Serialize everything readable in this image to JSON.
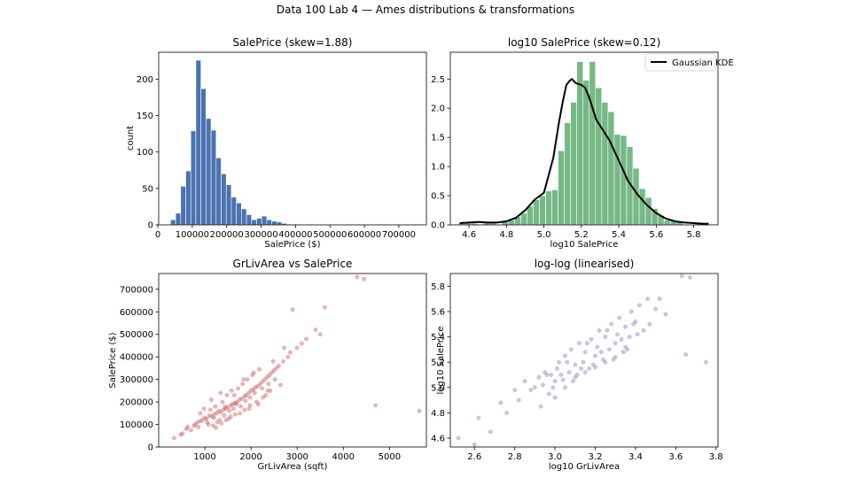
{
  "figure": {
    "suptitle": "Data 100 Lab 4 — Ames distributions & transformations"
  },
  "chart_data": [
    {
      "type": "bar",
      "subtype": "histogram",
      "title": "SalePrice (skew=1.88)",
      "xlabel": "SalePrice ($)",
      "ylabel": "count",
      "color": "#4c72b0",
      "xlim": [
        2500,
        780000
      ],
      "ylim": [
        0,
        237
      ],
      "xticks": [
        0,
        100000,
        200000,
        300000,
        400000,
        500000,
        600000,
        700000
      ],
      "xtick_labels": [
        "0",
        "100000",
        "200000",
        "300000",
        "400000",
        "500000",
        "600000",
        "700000"
      ],
      "yticks": [
        0,
        50,
        100,
        150,
        200
      ],
      "ytick_labels": [
        "0",
        "50",
        "100",
        "150",
        "200"
      ],
      "bin_start": 37000,
      "bin_width": 14700,
      "values": [
        7,
        16,
        53,
        74,
        129,
        226,
        187,
        146,
        130,
        92,
        70,
        55,
        38,
        30,
        22,
        14,
        7,
        9,
        12,
        7,
        5,
        4,
        2,
        1,
        1,
        0,
        0,
        1,
        0,
        0,
        0,
        0,
        0,
        0,
        0,
        0,
        0,
        0,
        0,
        0,
        0,
        0,
        0,
        0,
        0,
        0,
        0,
        0,
        1,
        1
      ]
    },
    {
      "type": "bar",
      "subtype": "histogram",
      "title": "log10 SalePrice (skew=0.12)",
      "xlabel": "log10 SalePrice",
      "ylabel": "",
      "color": "#55a868",
      "kde_color": "#000000",
      "xlim": [
        4.5,
        5.93
      ],
      "ylim": [
        0,
        2.96
      ],
      "xticks": [
        4.6,
        4.8,
        5.0,
        5.2,
        5.4,
        5.6,
        5.8
      ],
      "xtick_labels": [
        "4.6",
        "4.8",
        "5.0",
        "5.2",
        "5.4",
        "5.6",
        "5.8"
      ],
      "yticks": [
        0,
        0.5,
        1.0,
        1.5,
        2.0,
        2.5
      ],
      "ytick_labels": [
        "0.0",
        "0.5",
        "1.0",
        "1.5",
        "2.0",
        "2.5"
      ],
      "legend": {
        "entries": [
          "Gaussian KDE"
        ],
        "placement": "top-right"
      },
      "bin_start": 4.543,
      "bin_width": 0.0333,
      "values": [
        0.03,
        0.03,
        0.03,
        0.0,
        0.03,
        0.03,
        0.0,
        0.05,
        0.08,
        0.14,
        0.2,
        0.32,
        0.43,
        0.5,
        0.58,
        0.6,
        1.27,
        1.75,
        2.1,
        2.8,
        2.48,
        2.8,
        2.35,
        2.1,
        1.94,
        1.55,
        1.53,
        1.34,
        0.97,
        0.62,
        0.47,
        0.28,
        0.16,
        0.08,
        0.08,
        0.05,
        0.0,
        0.0,
        0.03,
        0.03
      ],
      "kde": {
        "x": [
          4.55,
          4.6,
          4.65,
          4.7,
          4.75,
          4.8,
          4.85,
          4.9,
          4.95,
          5.0,
          5.05,
          5.08,
          5.1,
          5.12,
          5.14,
          5.15,
          5.17,
          5.2,
          5.22,
          5.24,
          5.26,
          5.28,
          5.3,
          5.35,
          5.4,
          5.45,
          5.5,
          5.55,
          5.6,
          5.65,
          5.7,
          5.75,
          5.8,
          5.85,
          5.88
        ],
        "y": [
          0.03,
          0.04,
          0.05,
          0.04,
          0.04,
          0.06,
          0.12,
          0.25,
          0.43,
          0.55,
          1.15,
          1.75,
          2.1,
          2.4,
          2.48,
          2.5,
          2.43,
          2.4,
          2.35,
          2.2,
          2.0,
          1.8,
          1.7,
          1.45,
          1.1,
          0.75,
          0.52,
          0.34,
          0.2,
          0.11,
          0.06,
          0.04,
          0.03,
          0.02,
          0.02
        ]
      }
    },
    {
      "type": "scatter",
      "title": "GrLivArea vs SalePrice",
      "xlabel": "GrLivArea (sqft)",
      "ylabel": "SalePrice ($)",
      "color": "#c44e52",
      "xlim": [
        0,
        5800
      ],
      "ylim": [
        0,
        770000
      ],
      "xticks": [
        1000,
        2000,
        3000,
        4000,
        5000
      ],
      "xtick_labels": [
        "1000",
        "2000",
        "3000",
        "4000",
        "5000"
      ],
      "yticks": [
        0,
        100000,
        200000,
        300000,
        400000,
        500000,
        600000,
        700000
      ],
      "ytick_labels": [
        "0",
        "100000",
        "200000",
        "300000",
        "400000",
        "500000",
        "600000",
        "700000"
      ],
      "x": [
        334,
        480,
        520,
        600,
        630,
        700,
        760,
        800,
        840,
        860,
        900,
        950,
        1000,
        1040,
        1100,
        1150,
        1200,
        1260,
        1300,
        1350,
        1400,
        1450,
        1500,
        1560,
        1600,
        1650,
        1700,
        1750,
        1800,
        1860,
        1900,
        1950,
        2000,
        2050,
        2100,
        2150,
        2200,
        2250,
        2300,
        2350,
        2400,
        2450,
        2500,
        2550,
        2600,
        2700,
        2800,
        2850,
        3000,
        3100,
        3200,
        3400,
        3500,
        3600,
        4300,
        4450,
        4700,
        5650,
        900,
        1050,
        1120,
        1180,
        1230,
        1320,
        1380,
        1420,
        1480,
        1530,
        1580,
        1620,
        1680,
        1720,
        1780,
        1820,
        1880,
        1920,
        1980,
        2030,
        2080,
        2120,
        2180,
        2240,
        2320,
        2380,
        2420,
        2480,
        2520,
        2640,
        2720,
        2900,
        980,
        1080,
        1140,
        1200,
        1270,
        1340,
        1440,
        1520,
        1640,
        1760,
        1840,
        1960,
        2060,
        2160,
        2260,
        2360,
        1240,
        1360,
        1460,
        1560,
        1660,
        1860,
        1980
      ],
      "y": [
        40000,
        55000,
        60000,
        80000,
        90000,
        75000,
        95000,
        100000,
        110000,
        88000,
        115000,
        120000,
        130000,
        125000,
        140000,
        135000,
        145000,
        150000,
        160000,
        155000,
        165000,
        170000,
        175000,
        185000,
        190000,
        195000,
        200000,
        210000,
        215000,
        225000,
        230000,
        240000,
        250000,
        255000,
        265000,
        270000,
        280000,
        290000,
        300000,
        310000,
        320000,
        330000,
        340000,
        350000,
        360000,
        380000,
        400000,
        420000,
        440000,
        460000,
        480000,
        520000,
        500000,
        620000,
        755000,
        745000,
        185000,
        160000,
        150000,
        110000,
        165000,
        95000,
        180000,
        120000,
        200000,
        140000,
        230000,
        160000,
        250000,
        170000,
        190000,
        260000,
        180000,
        280000,
        205000,
        300000,
        220000,
        320000,
        240000,
        200000,
        345000,
        260000,
        230000,
        280000,
        250000,
        380000,
        300000,
        275000,
        440000,
        610000,
        170000,
        100000,
        210000,
        130000,
        110000,
        240000,
        180000,
        125000,
        230000,
        150000,
        300000,
        170000,
        330000,
        190000,
        220000,
        250000,
        85000,
        105000,
        120000,
        135000,
        145000,
        165000,
        185000
      ]
    },
    {
      "type": "scatter",
      "title": "log-log (linearised)",
      "xlabel": "log10 GrLivArea",
      "ylabel": "log10 SalePrice",
      "color": "#8172b2",
      "xlim": [
        2.48,
        3.81
      ],
      "ylim": [
        4.53,
        5.9
      ],
      "xticks": [
        2.6,
        2.8,
        3.0,
        3.2,
        3.4,
        3.6,
        3.8
      ],
      "xtick_labels": [
        "2.6",
        "2.8",
        "3.0",
        "3.2",
        "3.4",
        "3.6",
        "3.8"
      ],
      "yticks": [
        4.6,
        4.8,
        5.0,
        5.2,
        5.4,
        5.6,
        5.8
      ],
      "ytick_labels": [
        "4.6",
        "4.8",
        "5.0",
        "5.2",
        "5.4",
        "5.6",
        "5.8"
      ],
      "x": [
        2.52,
        2.6,
        2.62,
        2.68,
        2.73,
        2.76,
        2.8,
        2.82,
        2.85,
        2.88,
        2.9,
        2.92,
        2.94,
        2.95,
        2.97,
        2.98,
        3.0,
        3.01,
        3.02,
        3.04,
        3.05,
        3.07,
        3.08,
        3.1,
        3.11,
        3.12,
        3.14,
        3.15,
        3.17,
        3.18,
        3.2,
        3.21,
        3.22,
        3.24,
        3.25,
        3.27,
        3.28,
        3.3,
        3.31,
        3.32,
        3.34,
        3.35,
        3.37,
        3.38,
        3.4,
        3.42,
        3.44,
        3.46,
        3.5,
        3.55,
        3.63,
        3.65,
        3.67,
        3.75,
        2.96,
        2.99,
        3.03,
        3.06,
        3.09,
        3.13,
        3.16,
        3.19,
        3.23,
        3.26,
        3.29,
        3.33,
        3.36,
        3.39,
        2.93,
        3.0,
        3.05,
        3.1,
        3.15,
        3.2,
        3.25,
        3.3,
        3.35,
        3.41,
        3.47,
        3.52
      ],
      "y": [
        4.6,
        4.55,
        4.76,
        4.65,
        4.88,
        4.8,
        4.98,
        4.9,
        5.05,
        4.98,
        5.0,
        5.08,
        5.02,
        5.12,
        4.95,
        5.1,
        5.05,
        5.15,
        5.2,
        5.06,
        5.25,
        5.12,
        5.3,
        5.18,
        5.1,
        5.35,
        5.2,
        5.28,
        5.15,
        5.38,
        5.25,
        5.32,
        5.45,
        5.22,
        5.4,
        5.3,
        5.5,
        5.35,
        5.42,
        5.55,
        5.28,
        5.48,
        5.4,
        5.6,
        5.52,
        5.65,
        5.45,
        5.7,
        5.62,
        5.58,
        5.88,
        5.26,
        5.87,
        5.2,
        5.1,
        5.0,
        5.1,
        5.2,
        5.05,
        5.15,
        5.35,
        5.18,
        5.28,
        5.45,
        5.22,
        5.38,
        5.3,
        5.5,
        4.85,
        4.92,
        5.0,
        5.08,
        5.12,
        5.16,
        5.2,
        5.24,
        5.32,
        5.42,
        5.5,
        5.7
      ]
    }
  ]
}
